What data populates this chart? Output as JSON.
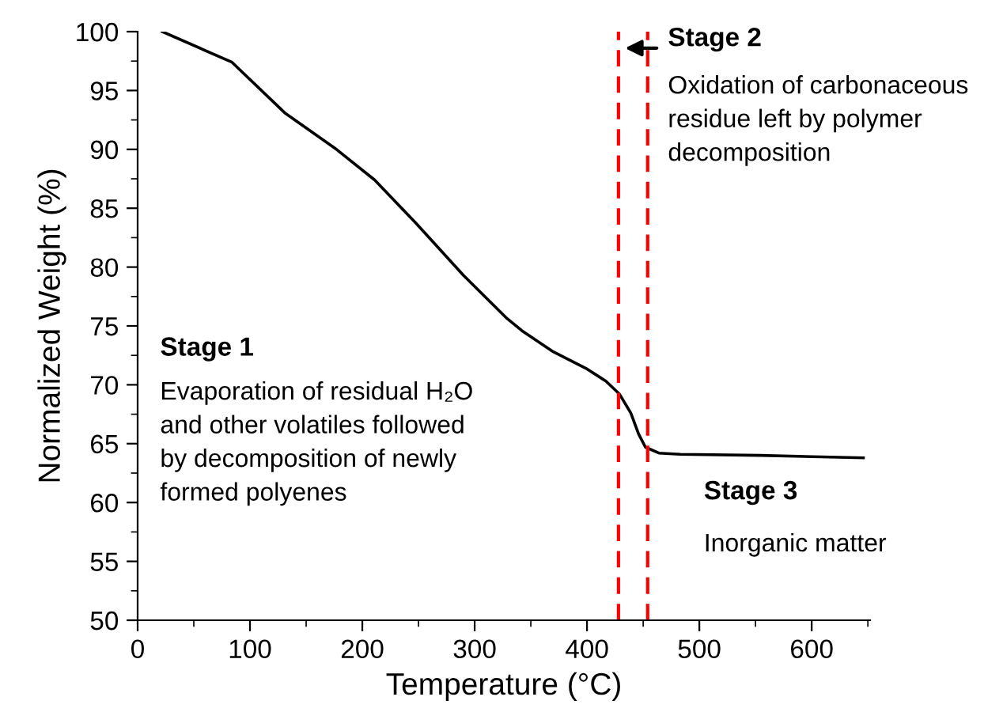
{
  "chart_data": {
    "type": "line",
    "xlabel": "Temperature (°C)",
    "ylabel": "Normalized Weight (%)",
    "x": [
      22,
      84,
      131,
      177,
      211,
      248,
      290,
      328,
      342,
      370,
      399,
      417,
      429,
      439,
      446,
      452,
      464,
      483,
      554,
      646
    ],
    "series": [
      {
        "color": "#000000",
        "values": [
          100,
          97.4,
          93.1,
          90.0,
          87.4,
          83.7,
          79.3,
          75.7,
          74.6,
          72.8,
          71.4,
          70.3,
          69.2,
          67.6,
          65.8,
          64.7,
          64.2,
          64.1,
          64.0,
          63.8
        ]
      }
    ],
    "xlim": [
      0,
      652
    ],
    "xticks": [
      0,
      100,
      200,
      300,
      400,
      500,
      600
    ],
    "ylim": [
      50,
      100
    ],
    "yticks": [
      50,
      55,
      60,
      65,
      70,
      75,
      80,
      85,
      90,
      95,
      100
    ],
    "grid": false,
    "legend": false,
    "marker": "none",
    "line_style": "solid",
    "ref_lines": [
      {
        "axis": "x",
        "value": 428,
        "color": "#ff0000",
        "line_style": "dashed"
      },
      {
        "axis": "x",
        "value": 454,
        "color": "#ff0000",
        "line_style": "dashed"
      }
    ],
    "annotations": [
      "Stage 1",
      "Evaporation of residual H₂O\nand other volatiles followed\nby decomposition of newly\nformed polyenes",
      "Stage 2",
      "Oxidation of carbonaceous\nresidue left by polymer\ndecomposition",
      "Stage 3",
      "Inorganic matter"
    ]
  }
}
